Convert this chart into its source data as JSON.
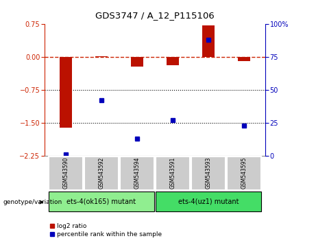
{
  "title": "GDS3747 / A_12_P115106",
  "samples": [
    "GSM543590",
    "GSM543592",
    "GSM543594",
    "GSM543591",
    "GSM543593",
    "GSM543595"
  ],
  "log2_ratio": [
    -1.62,
    0.02,
    -0.22,
    -0.18,
    0.72,
    -0.09
  ],
  "percentile_rank": [
    1,
    42,
    13,
    27,
    88,
    23
  ],
  "ylim_left": [
    -2.25,
    0.75
  ],
  "ylim_right": [
    0,
    100
  ],
  "yticks_left": [
    -2.25,
    -1.5,
    -0.75,
    0,
    0.75
  ],
  "yticks_right": [
    0,
    25,
    50,
    75,
    100
  ],
  "groups": [
    {
      "label": "ets-4(ok165) mutant",
      "indices": [
        0,
        1,
        2
      ],
      "color": "#90EE90"
    },
    {
      "label": "ets-4(uz1) mutant",
      "indices": [
        3,
        4,
        5
      ],
      "color": "#44DD66"
    }
  ],
  "bar_color": "#BB1100",
  "dot_color": "#0000BB",
  "hline_color": "#CC2200",
  "dotted_line_color": "#000000",
  "bg_color": "#FFFFFF",
  "plot_bg": "#FFFFFF",
  "bar_width": 0.35,
  "genotype_label": "genotype/variation",
  "legend_log2": "log2 ratio",
  "legend_pct": "percentile rank within the sample",
  "left_axis_color": "#CC2200",
  "right_axis_color": "#0000BB",
  "sample_box_color": "#CCCCCC",
  "sample_box_edge": "#FFFFFF"
}
